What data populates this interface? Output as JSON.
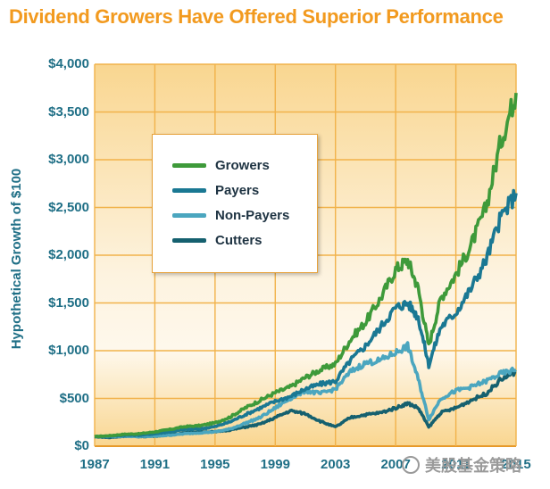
{
  "chart_data": {
    "type": "line",
    "title": "Dividend Growers Have Offered Superior Performance",
    "xlabel": "",
    "ylabel": "Hypothetical Growth of $100",
    "xlim": [
      1987,
      2015
    ],
    "ylim": [
      0,
      4000
    ],
    "grid": true,
    "legend_position": "upper-left",
    "y_ticks": [
      "$0",
      "$500",
      "$1,000",
      "$1,500",
      "$2,000",
      "$2,500",
      "$3,000",
      "$3,500",
      "$4,000"
    ],
    "y_tick_values": [
      0,
      500,
      1000,
      1500,
      2000,
      2500,
      3000,
      3500,
      4000
    ],
    "x_ticks": [
      "1987",
      "1991",
      "1995",
      "1999",
      "2003",
      "2007",
      "2011",
      "2015"
    ],
    "x_tick_values": [
      1987,
      1991,
      1995,
      1999,
      2003,
      2007,
      2011,
      2015
    ],
    "series": [
      {
        "name": "Growers",
        "color": "#3E9A3A",
        "x": [
          1987,
          1988,
          1989,
          1990,
          1991,
          1992,
          1993,
          1994,
          1995,
          1996,
          1997,
          1998,
          1999,
          2000,
          2001,
          2002,
          2003,
          2004,
          2005,
          2006,
          2007,
          2007.8,
          2008.5,
          2009.2,
          2010,
          2011,
          2012,
          2013,
          2014,
          2015
        ],
        "values": [
          100,
          110,
          125,
          130,
          150,
          175,
          205,
          215,
          245,
          305,
          400,
          480,
          560,
          620,
          720,
          800,
          860,
          1120,
          1300,
          1550,
          1850,
          1950,
          1650,
          1050,
          1550,
          1800,
          2100,
          2500,
          3200,
          3700
        ]
      },
      {
        "name": "Payers",
        "color": "#1A7893",
        "x": [
          1987,
          1988,
          1989,
          1990,
          1991,
          1992,
          1993,
          1994,
          1995,
          1996,
          1997,
          1998,
          1999,
          2000,
          2001,
          2002,
          2003,
          2004,
          2005,
          2006,
          2007,
          2007.8,
          2008.5,
          2009.2,
          2010,
          2011,
          2012,
          2013,
          2014,
          2015
        ],
        "values": [
          100,
          105,
          115,
          115,
          130,
          150,
          175,
          180,
          205,
          255,
          330,
          400,
          470,
          520,
          600,
          650,
          680,
          900,
          1050,
          1250,
          1450,
          1500,
          1350,
          850,
          1250,
          1400,
          1650,
          1950,
          2400,
          2650
        ]
      },
      {
        "name": "Non-Payers",
        "color": "#4BA6BF",
        "x": [
          1987,
          1988,
          1989,
          1990,
          1991,
          1992,
          1993,
          1994,
          1995,
          1996,
          1997,
          1998,
          1999,
          2000,
          2001,
          2002,
          2003,
          2004,
          2005,
          2006,
          2007,
          2007.8,
          2008.5,
          2009.2,
          2010,
          2011,
          2012,
          2013,
          2014,
          2015
        ],
        "values": [
          100,
          100,
          105,
          100,
          105,
          115,
          130,
          140,
          150,
          180,
          240,
          300,
          400,
          500,
          580,
          550,
          600,
          780,
          870,
          900,
          980,
          1050,
          700,
          280,
          500,
          580,
          620,
          680,
          760,
          800
        ]
      },
      {
        "name": "Cutters",
        "color": "#15606F",
        "x": [
          1987,
          1988,
          1989,
          1990,
          1991,
          1992,
          1993,
          1994,
          1995,
          1996,
          1997,
          1998,
          1999,
          2000,
          2001,
          2002,
          2003,
          2004,
          2005,
          2006,
          2007,
          2007.8,
          2008.5,
          2009.2,
          2010,
          2011,
          2012,
          2013,
          2014,
          2015
        ],
        "values": [
          100,
          90,
          105,
          100,
          105,
          120,
          140,
          150,
          150,
          170,
          200,
          230,
          300,
          370,
          340,
          260,
          200,
          300,
          330,
          350,
          400,
          450,
          400,
          200,
          350,
          400,
          480,
          550,
          700,
          780
        ]
      }
    ]
  },
  "watermark": "美股基金策略"
}
